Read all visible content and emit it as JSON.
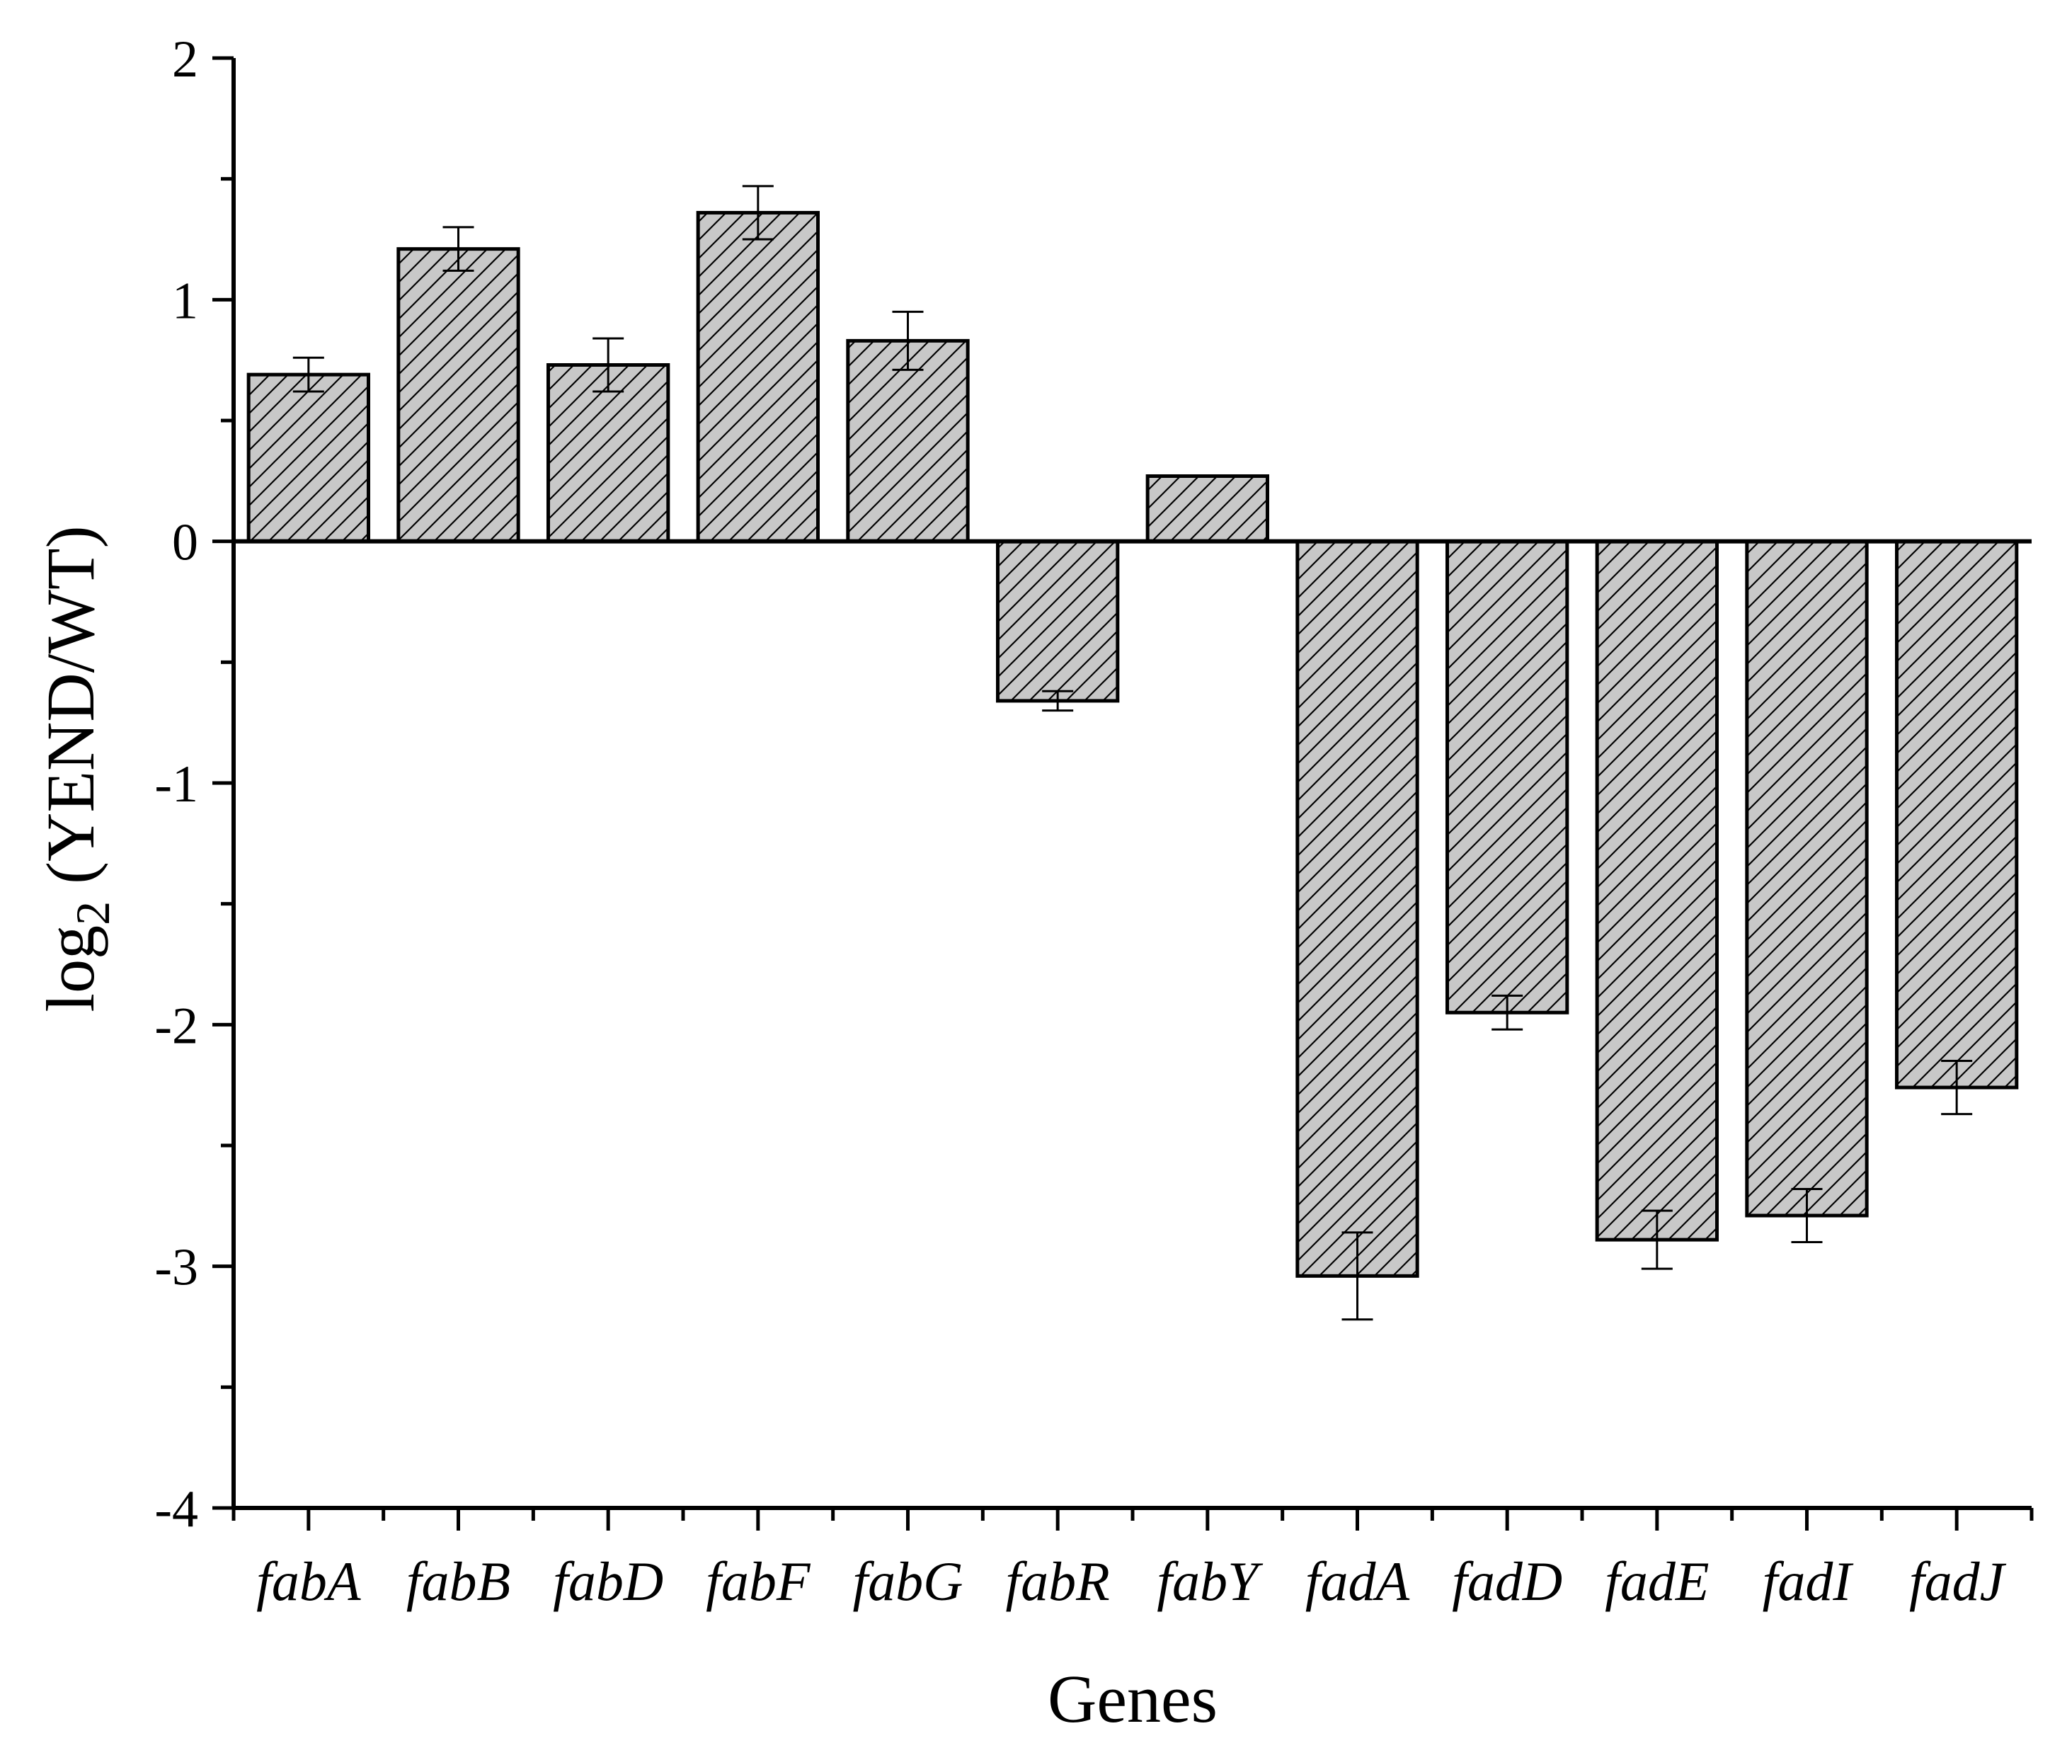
{
  "chart_data": {
    "type": "bar",
    "title": "",
    "xlabel": "Genes",
    "ylabel": {
      "base": "log",
      "sub": "2",
      "rest": " (YEND/WT)"
    },
    "ylim": [
      -4,
      2
    ],
    "yticks": [
      2,
      1,
      0,
      -1,
      -2,
      -3,
      -4
    ],
    "ytick_labels": [
      "2",
      "1",
      "0",
      "-1",
      "-2",
      "-3",
      "-4"
    ],
    "categories": [
      "fabA",
      "fabB",
      "fabD",
      "fabF",
      "fabG",
      "fabR",
      "fabY",
      "fadA",
      "fadD",
      "fadE",
      "fadI",
      "fadJ"
    ],
    "values": [
      0.69,
      1.21,
      0.73,
      1.36,
      0.83,
      -0.66,
      0.27,
      -3.04,
      -1.95,
      -2.89,
      -2.79,
      -2.26
    ],
    "errors": [
      0.07,
      0.09,
      0.11,
      0.11,
      0.12,
      0.04,
      0.0,
      0.18,
      0.07,
      0.12,
      0.11,
      0.11
    ],
    "bar_fill": "#c8c8c8",
    "bar_hatch": "diagonal",
    "grid": false,
    "legend": "none"
  }
}
